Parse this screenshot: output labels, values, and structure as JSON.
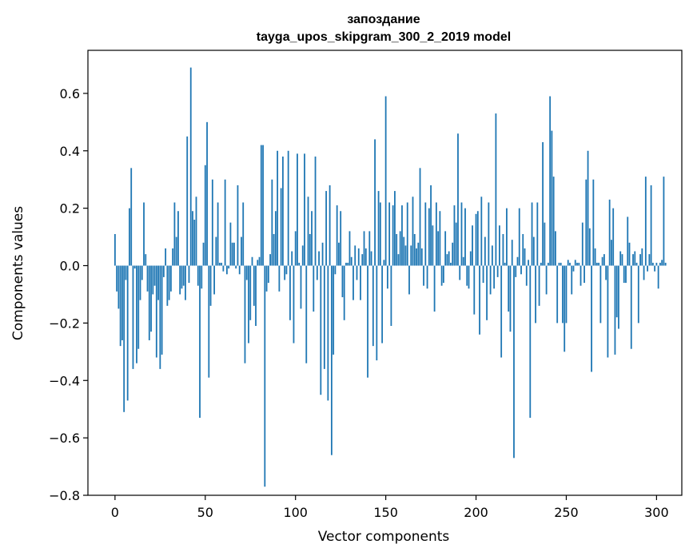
{
  "chart_data": {
    "type": "bar",
    "title": "запоздание",
    "subtitle": "tayga_upos_skipgram_300_2_2019 model",
    "xlabel": "Vector components",
    "ylabel": "Components values",
    "xlim": [
      -15,
      314
    ],
    "ylim": [
      -0.8,
      0.75
    ],
    "xticks": [
      0,
      50,
      100,
      150,
      200,
      250,
      300
    ],
    "yticks": [
      -0.8,
      -0.6,
      -0.4,
      -0.2,
      0.0,
      0.2,
      0.4,
      0.6
    ],
    "xtick_labels": [
      "0",
      "50",
      "100",
      "150",
      "200",
      "250",
      "300"
    ],
    "ytick_labels": [
      "−0.8",
      "−0.6",
      "−0.4",
      "−0.2",
      "0.0",
      "0.2",
      "0.4",
      "0.6"
    ],
    "bar_color": "#1f77b4",
    "grid": false,
    "values": [
      0.11,
      -0.09,
      -0.15,
      -0.28,
      -0.26,
      -0.51,
      -0.05,
      -0.47,
      0.2,
      0.34,
      -0.36,
      -0.01,
      -0.34,
      -0.29,
      -0.12,
      -0.05,
      0.22,
      0.04,
      -0.09,
      -0.26,
      -0.23,
      -0.1,
      -0.07,
      -0.32,
      -0.12,
      -0.36,
      -0.31,
      -0.04,
      0.06,
      -0.14,
      -0.12,
      -0.09,
      0.06,
      0.22,
      0.1,
      0.19,
      -0.1,
      -0.08,
      -0.07,
      -0.12,
      0.45,
      -0.06,
      0.69,
      0.19,
      0.16,
      0.24,
      -0.07,
      -0.53,
      -0.08,
      0.08,
      0.35,
      0.5,
      -0.39,
      -0.14,
      0.3,
      -0.1,
      0.1,
      0.22,
      0.01,
      0.01,
      -0.02,
      0.3,
      -0.03,
      -0.01,
      0.15,
      0.08,
      0.08,
      -0.01,
      0.28,
      -0.03,
      0.1,
      0.22,
      -0.34,
      -0.05,
      -0.27,
      -0.19,
      0.03,
      -0.14,
      -0.21,
      0.02,
      0.03,
      0.42,
      0.42,
      -0.77,
      -0.09,
      -0.06,
      0.04,
      0.3,
      0.11,
      0.19,
      0.4,
      -0.09,
      0.27,
      0.38,
      -0.05,
      -0.03,
      0.4,
      -0.19,
      0.05,
      -0.27,
      0.12,
      0.39,
      0.01,
      -0.15,
      0.07,
      0.39,
      -0.34,
      0.24,
      0.11,
      0.19,
      -0.16,
      0.38,
      -0.05,
      0.05,
      -0.45,
      0.08,
      -0.36,
      0.26,
      -0.47,
      0.28,
      -0.66,
      -0.31,
      -0.03,
      0.21,
      0.08,
      0.19,
      -0.11,
      -0.19,
      0.01,
      0.01,
      0.12,
      0.03,
      -0.12,
      0.07,
      -0.05,
      0.06,
      -0.12,
      0.04,
      0.12,
      0.06,
      -0.39,
      0.12,
      0.05,
      -0.28,
      0.44,
      -0.33,
      0.26,
      0.22,
      -0.27,
      0.02,
      0.59,
      -0.08,
      0.22,
      -0.21,
      0.21,
      0.26,
      0.11,
      0.04,
      0.12,
      0.21,
      0.1,
      0.07,
      0.22,
      -0.1,
      0.07,
      0.24,
      0.11,
      0.06,
      0.08,
      0.34,
      0.06,
      -0.07,
      0.22,
      -0.08,
      0.2,
      0.28,
      0.14,
      -0.16,
      0.22,
      0.12,
      0.19,
      -0.07,
      -0.06,
      0.12,
      0.04,
      0.05,
      0.01,
      0.08,
      0.21,
      0.15,
      0.46,
      -0.05,
      0.22,
      0.03,
      0.2,
      -0.07,
      -0.08,
      0.05,
      0.14,
      -0.17,
      0.18,
      0.19,
      -0.24,
      0.24,
      -0.06,
      0.1,
      -0.19,
      0.22,
      -0.1,
      0.07,
      -0.08,
      0.53,
      -0.04,
      0.14,
      -0.32,
      0.11,
      0.01,
      0.2,
      -0.16,
      -0.23,
      0.09,
      -0.67,
      -0.04,
      0.03,
      0.2,
      -0.03,
      0.11,
      0.06,
      -0.07,
      0.02,
      -0.53,
      0.22,
      0.1,
      -0.2,
      0.22,
      -0.14,
      0.01,
      0.43,
      0.15,
      -0.1,
      0.01,
      0.59,
      0.47,
      0.31,
      0.12,
      -0.2,
      0.01,
      0.01,
      -0.2,
      -0.3,
      -0.2,
      0.02,
      0.01,
      -0.1,
      -0.02,
      0.02,
      0.01,
      0.01,
      -0.07,
      0.15,
      -0.06,
      0.3,
      0.4,
      0.13,
      -0.37,
      0.3,
      0.06,
      0.01,
      0.01,
      -0.2,
      0.03,
      0.04,
      -0.05,
      -0.32,
      0.23,
      0.09,
      0.2,
      -0.31,
      -0.18,
      -0.22,
      0.05,
      0.04,
      -0.06,
      -0.06,
      0.17,
      0.08,
      -0.29,
      0.04,
      0.05,
      0.01,
      -0.2,
      0.04,
      0.06,
      -0.05,
      0.31,
      -0.02,
      0.04,
      0.28,
      0.01,
      -0.02,
      0.01,
      -0.08,
      0.01,
      0.02,
      0.31,
      0.01
    ]
  }
}
